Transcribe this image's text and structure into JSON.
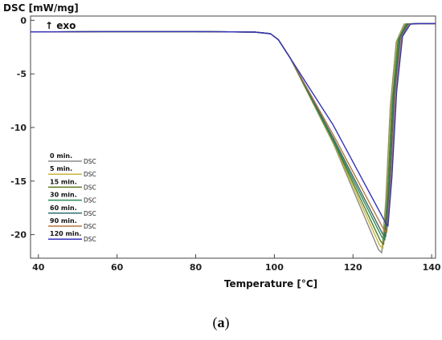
{
  "chart_data": {
    "type": "line",
    "ylabel": "DSC [mW/mg]",
    "xlabel": "Temperature [°C]",
    "annotation": "↑ exo",
    "xlim": [
      38,
      141
    ],
    "ylim": [
      -22.2,
      0.4
    ],
    "xticks": [
      40,
      60,
      80,
      100,
      120,
      140
    ],
    "yticks": [
      0,
      -5,
      -10,
      -15,
      -20
    ],
    "grid": false,
    "legend_position": "lower-left",
    "legend_suffix": "DSC",
    "series": [
      {
        "name": "0 min.",
        "color": "#8a8a8a",
        "x": [
          38,
          60,
          80,
          95,
          99,
          101,
          104,
          115,
          126.5,
          127.3,
          128.3,
          129.5,
          131,
          133,
          136,
          141
        ],
        "y": [
          -1.08,
          -1.05,
          -1.05,
          -1.1,
          -1.25,
          -1.8,
          -3.5,
          -11.5,
          -21.4,
          -21.7,
          -17,
          -8,
          -2,
          -0.35,
          -0.3,
          -0.3
        ]
      },
      {
        "name": "5 min.",
        "color": "#c8b43c",
        "x": [
          38,
          60,
          80,
          95,
          99,
          101,
          104,
          115,
          126.8,
          127.6,
          128.6,
          129.8,
          131.3,
          133.3,
          136,
          141
        ],
        "y": [
          -1.08,
          -1.05,
          -1.05,
          -1.1,
          -1.25,
          -1.8,
          -3.5,
          -11.4,
          -21.0,
          -21.3,
          -16.6,
          -7.8,
          -1.9,
          -0.35,
          -0.3,
          -0.3
        ]
      },
      {
        "name": "15 min.",
        "color": "#5a7a1e",
        "x": [
          38,
          60,
          80,
          95,
          99,
          101,
          104,
          115,
          127,
          127.8,
          128.8,
          130,
          131.5,
          133.5,
          136,
          141
        ],
        "y": [
          -1.08,
          -1.05,
          -1.05,
          -1.1,
          -1.25,
          -1.8,
          -3.5,
          -11.3,
          -20.6,
          -20.9,
          -16.2,
          -7.5,
          -1.8,
          -0.35,
          -0.3,
          -0.3
        ]
      },
      {
        "name": "30 min.",
        "color": "#2e8b57",
        "x": [
          38,
          60,
          80,
          95,
          99,
          101,
          104,
          115,
          127.3,
          128.1,
          129.1,
          130.3,
          131.8,
          133.8,
          136,
          141
        ],
        "y": [
          -1.08,
          -1.05,
          -1.05,
          -1.1,
          -1.25,
          -1.8,
          -3.5,
          -11.2,
          -20.2,
          -20.5,
          -15.8,
          -7.2,
          -1.7,
          -0.35,
          -0.3,
          -0.3
        ]
      },
      {
        "name": "60 min.",
        "color": "#2f6f6a",
        "x": [
          38,
          60,
          80,
          95,
          99,
          101,
          104,
          115,
          127.5,
          128.3,
          129.3,
          130.5,
          132,
          134,
          136,
          141
        ],
        "y": [
          -1.08,
          -1.05,
          -1.05,
          -1.1,
          -1.25,
          -1.8,
          -3.5,
          -11.0,
          -19.9,
          -20.2,
          -15.5,
          -7.0,
          -1.6,
          -0.35,
          -0.3,
          -0.3
        ]
      },
      {
        "name": "90 min.",
        "color": "#b8763a",
        "x": [
          38,
          60,
          80,
          95,
          99,
          101,
          104,
          115,
          127.8,
          128.6,
          129.6,
          130.8,
          132.3,
          134.3,
          136.5,
          141
        ],
        "y": [
          -1.08,
          -1.05,
          -1.05,
          -1.1,
          -1.25,
          -1.8,
          -3.5,
          -10.7,
          -19.5,
          -19.8,
          -15.1,
          -6.8,
          -1.6,
          -0.35,
          -0.3,
          -0.3
        ]
      },
      {
        "name": "120 min.",
        "color": "#3333bb",
        "x": [
          38,
          60,
          80,
          95,
          99,
          101,
          104,
          115,
          128,
          128.9,
          129.9,
          131.1,
          132.6,
          134.6,
          137,
          141
        ],
        "y": [
          -1.08,
          -1.05,
          -1.05,
          -1.1,
          -1.25,
          -1.8,
          -3.5,
          -9.8,
          -18.7,
          -19.2,
          -14.6,
          -6.6,
          -1.5,
          -0.35,
          -0.3,
          -0.3
        ]
      }
    ]
  },
  "caption": {
    "text": "a"
  }
}
